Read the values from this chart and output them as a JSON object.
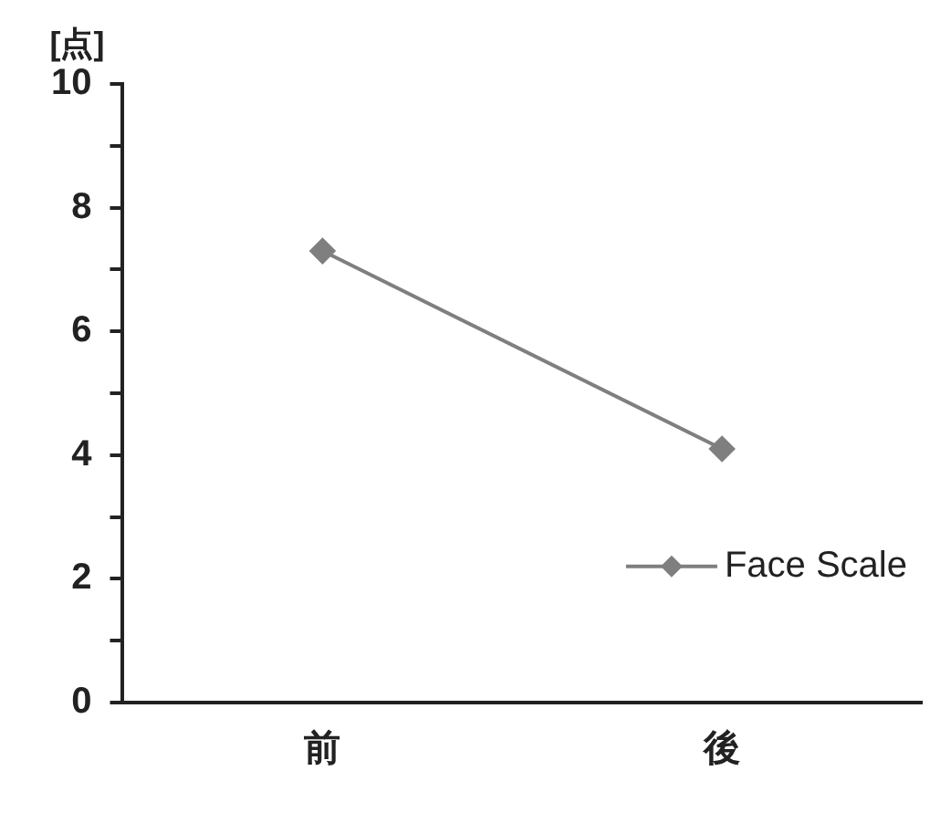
{
  "chart_data": {
    "type": "line",
    "ylabel": "[点]",
    "categories": [
      "前",
      "後"
    ],
    "series": [
      {
        "name": "Face Scale",
        "color": "#7f7f7f",
        "values": [
          7.3,
          4.1
        ]
      }
    ],
    "ylim": [
      0,
      10
    ],
    "yticks": [
      0,
      {
        "value": 1,
        "label": null
      },
      2,
      {
        "value": 3,
        "label": null
      },
      4,
      {
        "value": 5,
        "label": null
      },
      6,
      {
        "value": 7,
        "label": null
      },
      8,
      {
        "value": 9,
        "label": null
      },
      10
    ],
    "grid": false,
    "legend": "right",
    "marker": "diamond",
    "line_style": "solid"
  }
}
